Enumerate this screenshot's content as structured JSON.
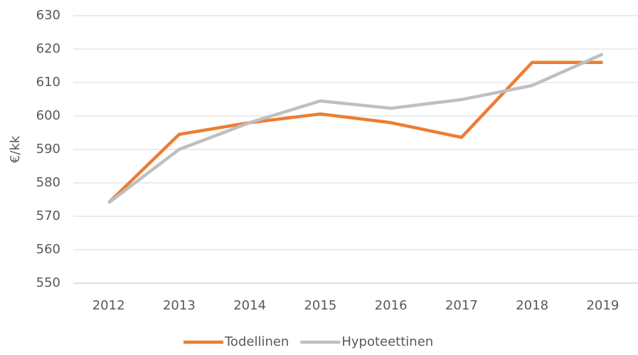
{
  "chart_data": {
    "type": "line",
    "y_label": "€/kk",
    "categories": [
      "2012",
      "2013",
      "2014",
      "2015",
      "2016",
      "2017",
      "2018",
      "2019"
    ],
    "series": [
      {
        "name": "Todellinen",
        "color": "#ed7d31",
        "values": [
          574,
          594.5,
          598,
          600.6,
          598,
          593.6,
          616,
          616
        ]
      },
      {
        "name": "Hypoteettinen",
        "color": "#bfbfbf",
        "values": [
          574,
          590,
          598,
          604.5,
          602.3,
          604.9,
          609.1,
          618.5
        ]
      }
    ],
    "ylim": [
      550,
      630
    ],
    "yticks": [
      550,
      560,
      570,
      580,
      590,
      600,
      610,
      620,
      630
    ],
    "grid": true,
    "legend": "bottom"
  }
}
